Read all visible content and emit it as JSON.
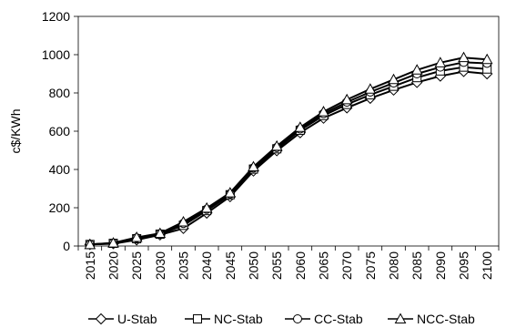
{
  "chart_data": {
    "type": "line",
    "ylabel": "c$/KWh",
    "xlabel": "",
    "x": [
      2015,
      2020,
      2025,
      2030,
      2035,
      2040,
      2045,
      2050,
      2055,
      2060,
      2065,
      2070,
      2075,
      2080,
      2085,
      2090,
      2095,
      2100
    ],
    "ylim": [
      0,
      1200
    ],
    "yticks": [
      0,
      200,
      400,
      600,
      800,
      1000,
      1200
    ],
    "grid": false,
    "legend": "bottom",
    "series": [
      {
        "name": "U-Stab",
        "marker": "diamond",
        "values": [
          8,
          12,
          32,
          58,
          92,
          172,
          258,
          392,
          498,
          592,
          668,
          722,
          772,
          815,
          855,
          888,
          912,
          900
        ]
      },
      {
        "name": "NC-Stab",
        "marker": "square",
        "values": [
          8,
          14,
          38,
          62,
          108,
          185,
          268,
          402,
          508,
          605,
          682,
          740,
          790,
          835,
          880,
          915,
          935,
          925
        ]
      },
      {
        "name": "CC-Stab",
        "marker": "circle",
        "values": [
          8,
          15,
          42,
          64,
          118,
          192,
          272,
          408,
          515,
          612,
          692,
          752,
          805,
          852,
          900,
          935,
          960,
          955
        ]
      },
      {
        "name": "NCC-Stab",
        "marker": "triangle",
        "values": [
          8,
          16,
          45,
          66,
          126,
          198,
          278,
          414,
          522,
          620,
          702,
          765,
          820,
          870,
          920,
          958,
          985,
          975
        ]
      }
    ]
  }
}
